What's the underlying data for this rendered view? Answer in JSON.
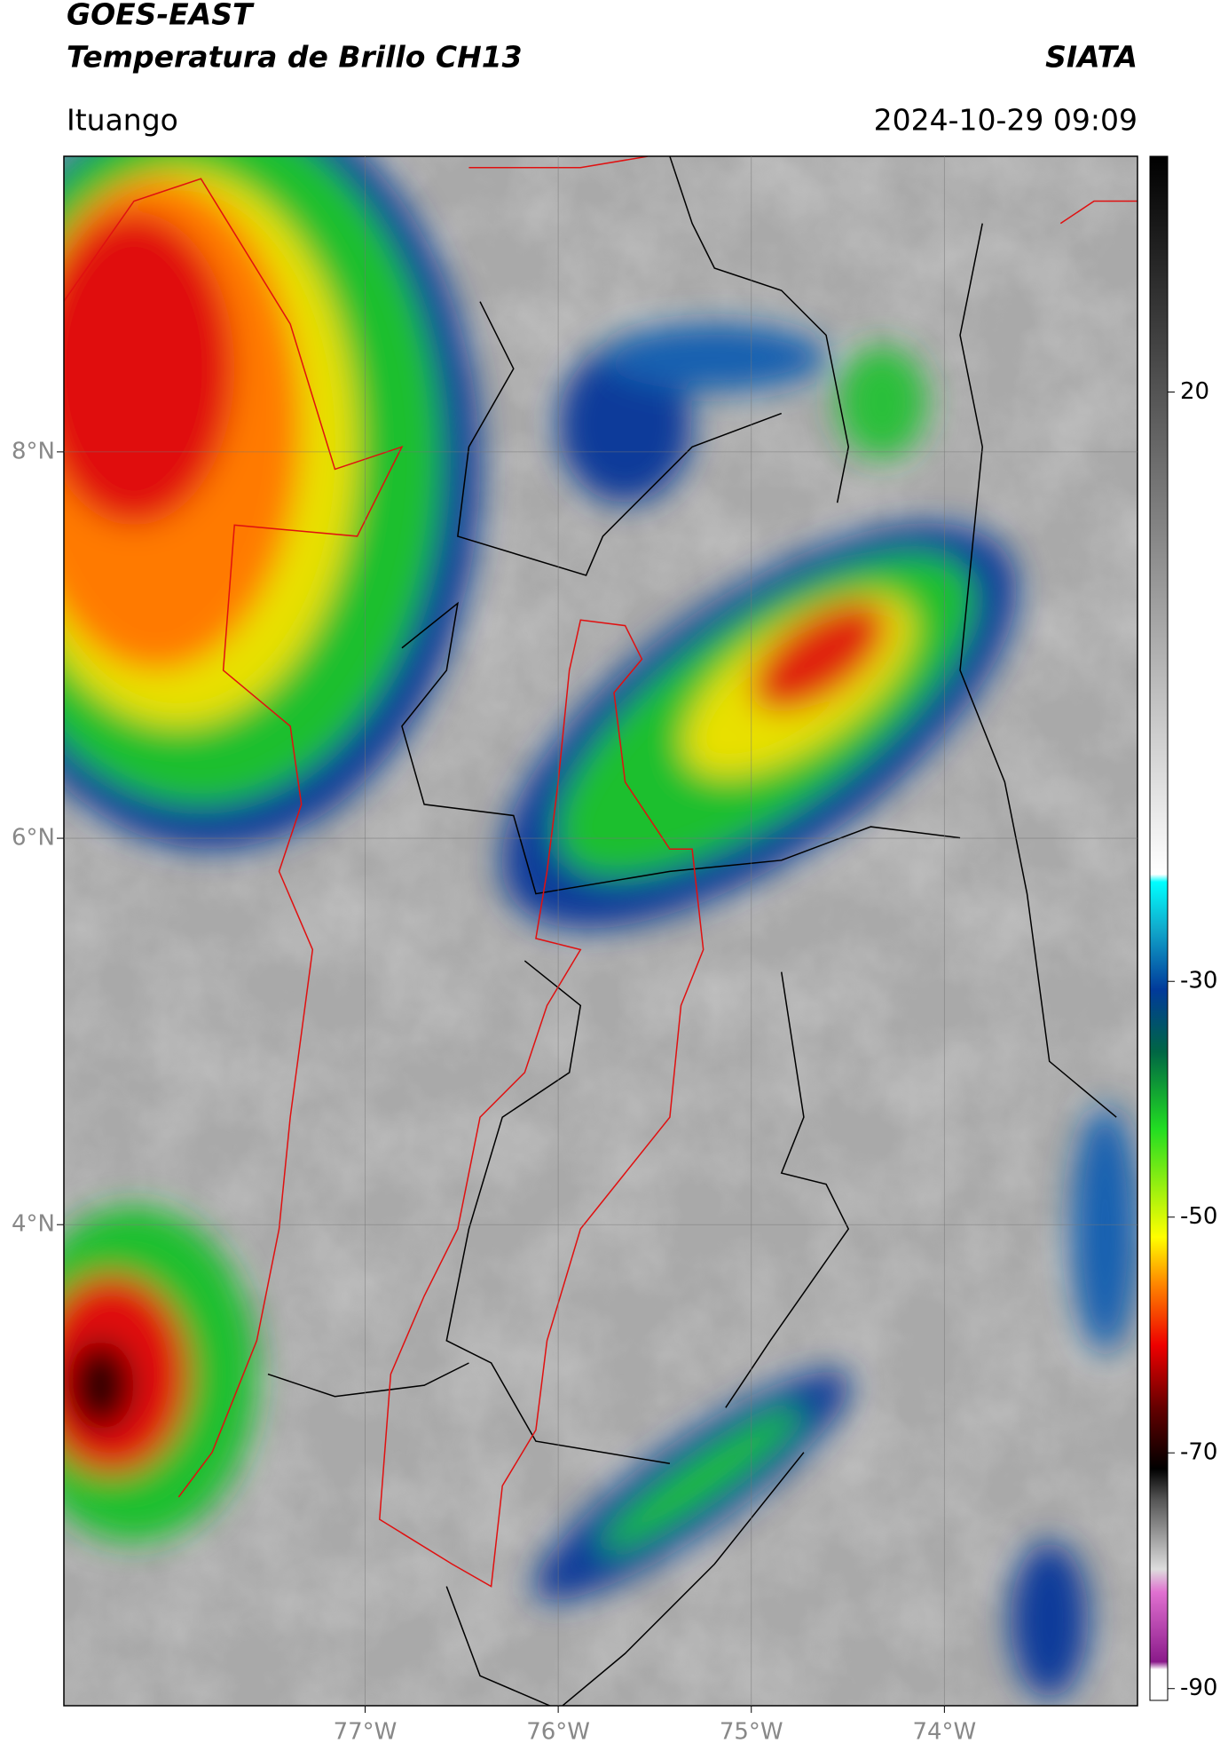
{
  "header": {
    "title": "GOES-EAST",
    "subtitle": "Temperatura de Brillo CH13",
    "source": "SIATA",
    "location": "Ituango",
    "datetime": "2024-10-29 09:09"
  },
  "map": {
    "xlim": [
      -78.56,
      -73.0
    ],
    "ylim": [
      1.51,
      9.53
    ],
    "xticks": [
      {
        "value": -77,
        "label": "77°W"
      },
      {
        "value": -76,
        "label": "76°W"
      },
      {
        "value": -75,
        "label": "75°W"
      },
      {
        "value": -74,
        "label": "74°W"
      }
    ],
    "yticks": [
      {
        "value": 8,
        "label": "8°N"
      },
      {
        "value": 6,
        "label": "6°N"
      },
      {
        "value": 4,
        "label": "4°N"
      }
    ],
    "grid": true
  },
  "colorbar": {
    "clim": [
      -91,
      40
    ],
    "ticks": [
      20,
      -30,
      -50,
      -70,
      -90
    ]
  }
}
